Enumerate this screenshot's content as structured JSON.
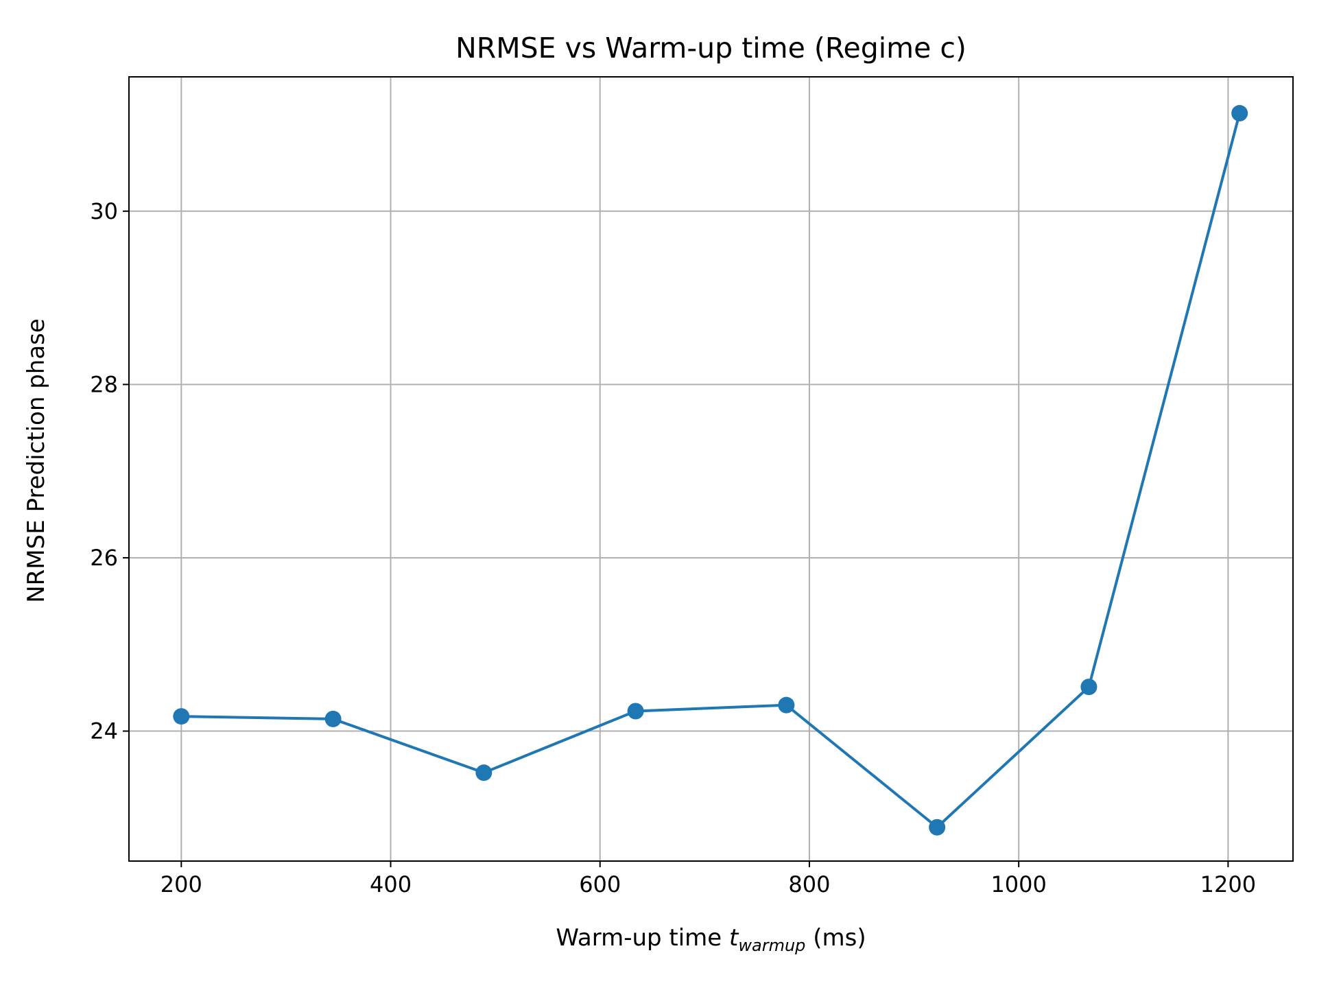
{
  "chart_data": {
    "type": "line",
    "title": "NRMSE vs Warm-up time (Regime c)",
    "xlabel": {
      "prefix": "Warm-up time ",
      "symbol": "t",
      "subscript": "warmup",
      "suffix": " (ms)"
    },
    "ylabel": "NRMSE Prediction phase",
    "xlim": [
      150,
      1262
    ],
    "ylim": [
      22.5,
      31.55
    ],
    "x_ticks": [
      200,
      400,
      600,
      800,
      1000,
      1200
    ],
    "y_ticks": [
      24,
      26,
      28,
      30
    ],
    "grid": true,
    "color": "#1f77b4",
    "series": [
      {
        "name": "",
        "x": [
          200,
          345,
          489,
          634,
          778,
          922,
          1067,
          1211
        ],
        "y": [
          24.17,
          24.14,
          23.52,
          24.23,
          24.3,
          22.89,
          24.51,
          31.13
        ]
      }
    ]
  }
}
